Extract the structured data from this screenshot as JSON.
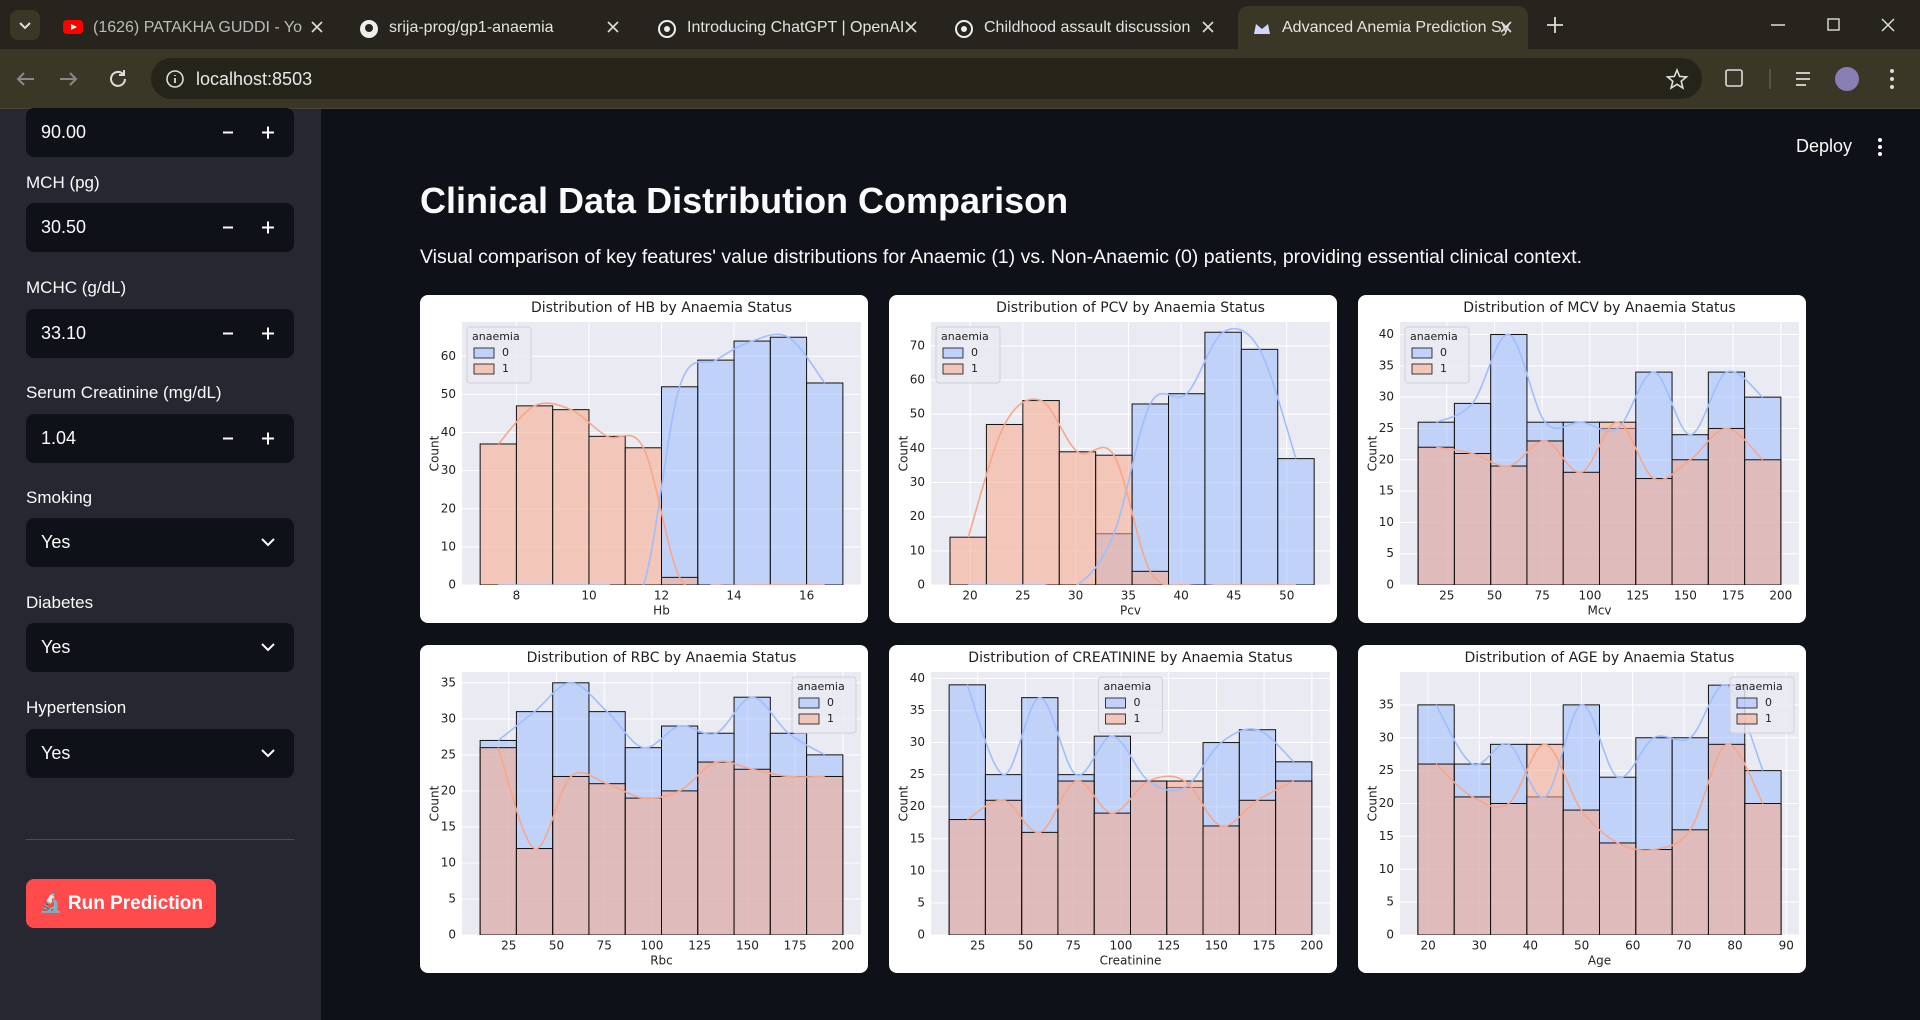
{
  "browser": {
    "tabs": [
      "(1626) PATAKHA GUDDI - Yo",
      "srija-prog/gp1-anaemia",
      "Introducing ChatGPT | OpenAI",
      "Childhood assault discussion",
      "Advanced Anemia Prediction Sy"
    ],
    "address": "localhost:8503"
  },
  "header": {
    "deploy": "Deploy"
  },
  "sidebar": {
    "partial_value": "90.00",
    "fields": [
      {
        "label": "MCH (pg)",
        "value": "30.50"
      },
      {
        "label": "MCHC (g/dL)",
        "value": "33.10"
      },
      {
        "label": "Serum Creatinine (mg/dL)",
        "value": "1.04"
      }
    ],
    "selects": [
      {
        "label": "Smoking",
        "value": "Yes"
      },
      {
        "label": "Diabetes",
        "value": "Yes"
      },
      {
        "label": "Hypertension",
        "value": "Yes"
      }
    ],
    "button": "🔬 Run Prediction"
  },
  "main": {
    "title": "Clinical Data Distribution Comparison",
    "description": "Visual comparison of key features' value distributions for Anaemic (1) vs. Non-Anaemic (0) patients, providing essential clinical context."
  },
  "chart_data": [
    {
      "type": "histogram",
      "title": "Distribution of HB by Anaemia Status",
      "xlabel": "Hb",
      "ylabel": "Count",
      "bins": [
        7,
        8,
        9,
        10,
        11,
        12,
        13,
        14,
        15,
        16,
        17
      ],
      "series": [
        {
          "name": "0",
          "color": "#9ebeff",
          "values": [
            0,
            0,
            0,
            0,
            0,
            52,
            59,
            64,
            65,
            53
          ]
        },
        {
          "name": "1",
          "color": "#f7a789",
          "values": [
            37,
            47,
            46,
            39,
            36,
            2,
            0,
            0,
            0,
            0
          ]
        }
      ],
      "xlim": [
        6.5,
        17.5
      ],
      "ylim": [
        0,
        69
      ],
      "xticks": [
        8,
        10,
        12,
        14,
        16
      ],
      "yticks": [
        0,
        10,
        20,
        30,
        40,
        50,
        60
      ],
      "legend_title": "anaemia",
      "legend_loc": "upper left",
      "grid": true
    },
    {
      "type": "histogram",
      "title": "Distribution of PCV by Anaemia Status",
      "xlabel": "Pcv",
      "ylabel": "Count",
      "bins": [
        18.1,
        21.55,
        25,
        28.45,
        31.9,
        35.35,
        38.8,
        42.25,
        45.7,
        49.15,
        52.6
      ],
      "series": [
        {
          "name": "0",
          "color": "#9ebeff",
          "values": [
            0,
            0,
            0,
            0,
            15,
            53,
            56,
            74,
            69,
            37
          ]
        },
        {
          "name": "1",
          "color": "#f7a789",
          "values": [
            14,
            47,
            54,
            39,
            38,
            4,
            0,
            0,
            0,
            0
          ]
        }
      ],
      "xlim": [
        16.3,
        54.1
      ],
      "ylim": [
        0,
        77
      ],
      "xticks": [
        20,
        25,
        30,
        35,
        40,
        45,
        50
      ],
      "yticks": [
        0,
        10,
        20,
        30,
        40,
        50,
        60,
        70
      ],
      "legend_title": "anaemia",
      "legend_loc": "upper left",
      "grid": true
    },
    {
      "type": "histogram",
      "title": "Distribution of MCV by Anaemia Status",
      "xlabel": "Mcv",
      "ylabel": "Count",
      "bins": [
        10,
        29,
        48,
        67,
        86,
        105,
        124,
        143,
        162,
        181,
        200
      ],
      "series": [
        {
          "name": "0",
          "color": "#9ebeff",
          "values": [
            26,
            29,
            40,
            26,
            26,
            25,
            34,
            24,
            34,
            30
          ]
        },
        {
          "name": "1",
          "color": "#f7a789",
          "values": [
            22,
            21,
            19,
            23,
            18,
            26,
            17,
            20,
            25,
            20
          ]
        }
      ],
      "xlim": [
        0.5,
        209.5
      ],
      "ylim": [
        0,
        42
      ],
      "xticks": [
        25,
        50,
        75,
        100,
        125,
        150,
        175,
        200
      ],
      "yticks": [
        0,
        5,
        10,
        15,
        20,
        25,
        30,
        35,
        40
      ],
      "legend_title": "anaemia",
      "legend_loc": "upper left",
      "grid": true
    },
    {
      "type": "histogram",
      "title": "Distribution of RBC by Anaemia Status",
      "xlabel": "Rbc",
      "ylabel": "Count",
      "bins": [
        10,
        29,
        48,
        67,
        86,
        105,
        124,
        143,
        162,
        181,
        200
      ],
      "series": [
        {
          "name": "0",
          "color": "#9ebeff",
          "values": [
            27,
            31,
            35,
            31,
            26,
            29,
            28,
            33,
            28,
            25
          ]
        },
        {
          "name": "1",
          "color": "#f7a789",
          "values": [
            26,
            12,
            22,
            21,
            19,
            20,
            24,
            23,
            22,
            22
          ]
        }
      ],
      "xlim": [
        0.5,
        209.5
      ],
      "ylim": [
        0,
        36.5
      ],
      "xticks": [
        25,
        50,
        75,
        100,
        125,
        150,
        175,
        200
      ],
      "yticks": [
        0,
        5,
        10,
        15,
        20,
        25,
        30,
        35
      ],
      "legend_title": "anaemia",
      "legend_loc": "upper right",
      "grid": true
    },
    {
      "type": "histogram",
      "title": "Distribution of CREATININE by Anaemia Status",
      "xlabel": "Creatinine",
      "ylabel": "Count",
      "bins": [
        10,
        29,
        48,
        67,
        86,
        105,
        124,
        143,
        162,
        181,
        200
      ],
      "series": [
        {
          "name": "0",
          "color": "#9ebeff",
          "values": [
            39,
            25,
            37,
            25,
            31,
            24,
            23,
            30,
            32,
            27
          ]
        },
        {
          "name": "1",
          "color": "#f7a789",
          "values": [
            18,
            21,
            16,
            24,
            19,
            24,
            24,
            17,
            21,
            24
          ]
        }
      ],
      "xlim": [
        0.5,
        209.5
      ],
      "ylim": [
        0,
        41
      ],
      "xticks": [
        25,
        50,
        75,
        100,
        125,
        150,
        175,
        200
      ],
      "yticks": [
        0,
        5,
        10,
        15,
        20,
        25,
        30,
        35,
        40
      ],
      "legend_title": "anaemia",
      "legend_loc": "upper center",
      "grid": true
    },
    {
      "type": "histogram",
      "title": "Distribution of AGE by Anaemia Status",
      "xlabel": "Age",
      "ylabel": "Count",
      "bins": [
        18,
        25.1,
        32.2,
        39.3,
        46.4,
        53.5,
        60.6,
        67.7,
        74.8,
        81.9,
        89
      ],
      "series": [
        {
          "name": "0",
          "color": "#9ebeff",
          "values": [
            35,
            26,
            29,
            21,
            35,
            24,
            30,
            30,
            38,
            25
          ]
        },
        {
          "name": "1",
          "color": "#f7a789",
          "values": [
            26,
            21,
            20,
            29,
            19,
            14,
            13,
            16,
            29,
            20
          ]
        }
      ],
      "xlim": [
        14.5,
        92.5
      ],
      "ylim": [
        0,
        40
      ],
      "xticks": [
        20,
        30,
        40,
        50,
        60,
        70,
        80,
        90
      ],
      "yticks": [
        0,
        5,
        10,
        15,
        20,
        25,
        30,
        35
      ],
      "legend_title": "anaemia",
      "legend_loc": "upper right",
      "grid": true
    }
  ]
}
